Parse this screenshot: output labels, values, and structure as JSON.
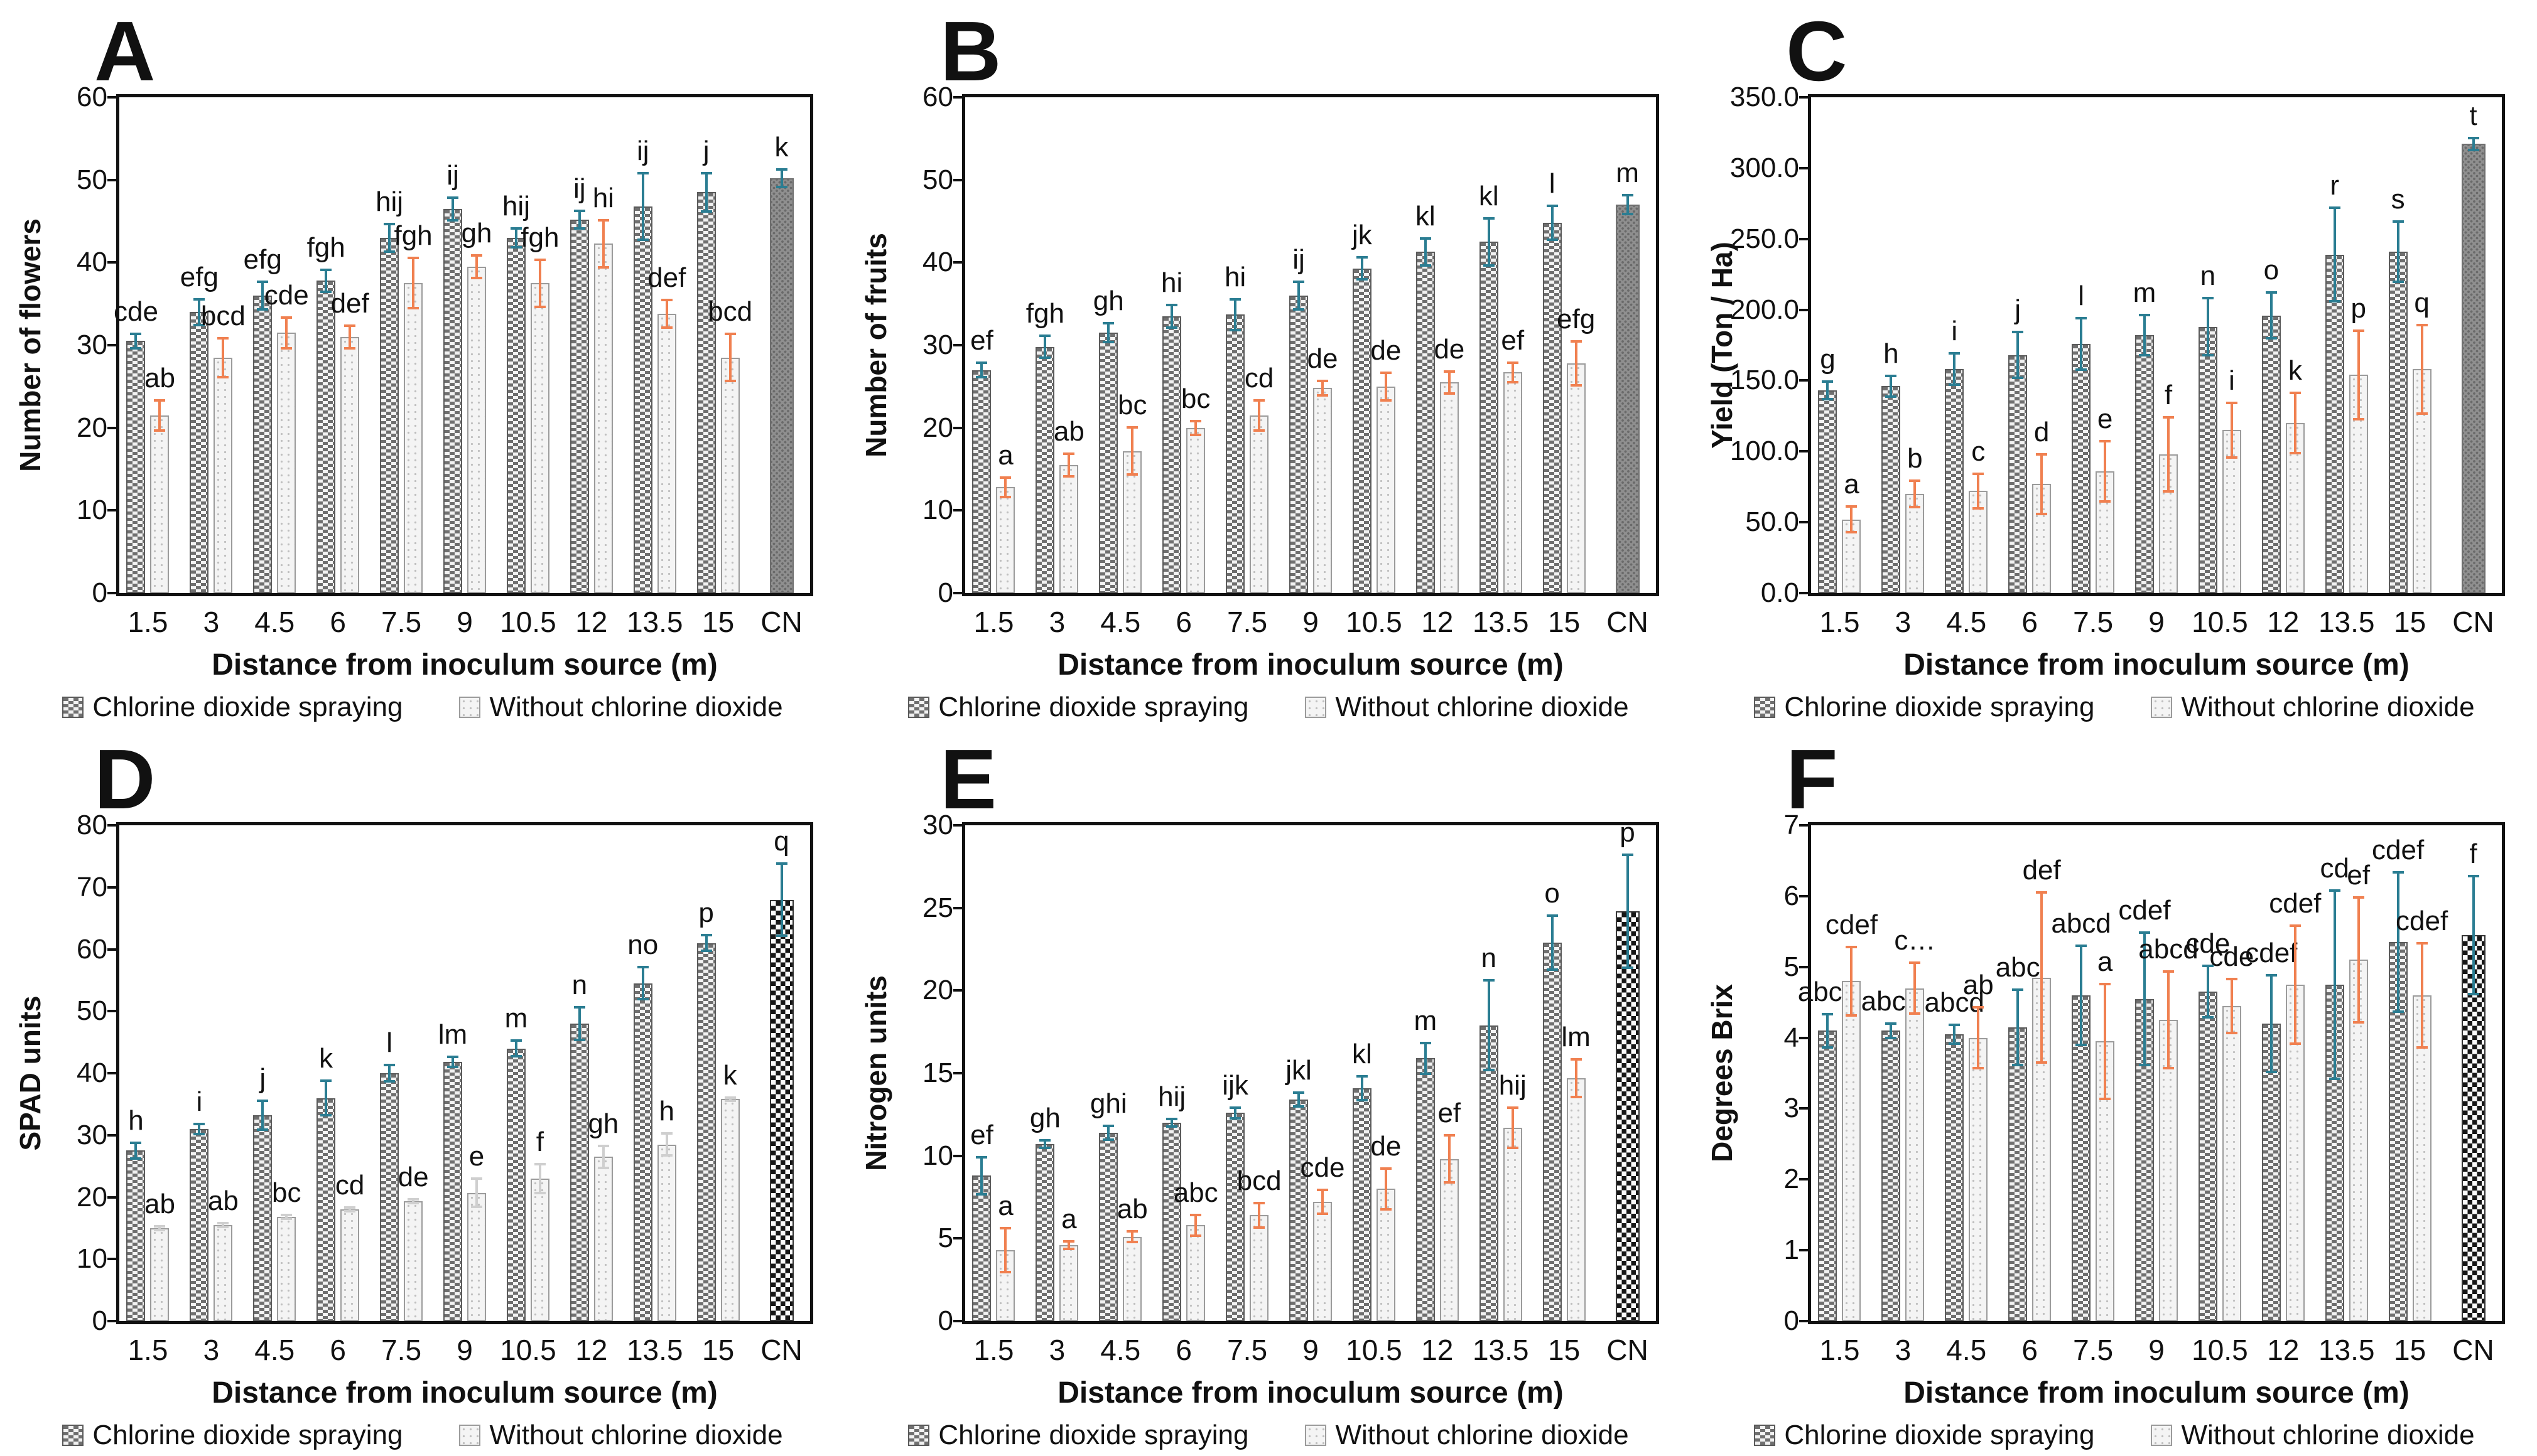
{
  "figure": {
    "xlabel": "Distance from inoculum source (m)",
    "categories": [
      "1.5",
      "3",
      "4.5",
      "6",
      "7.5",
      "9",
      "10.5",
      "12",
      "13.5",
      "15",
      "CN"
    ],
    "legend": {
      "series1_label": "Chlorine dioxide spraying",
      "series2_label": "Without chlorine dioxide"
    },
    "colors": {
      "series1_error": "#2a7d92",
      "series2_error": "#f08050",
      "axis": "#111111",
      "text": "#111111"
    }
  },
  "chart_data": [
    {
      "panel": "A",
      "type": "bar",
      "ylabel": "Number of flowers",
      "ylim": [
        0,
        60
      ],
      "ystep": 10,
      "tick_decimals": 0,
      "cn_style": "dot",
      "categories": [
        "1.5",
        "3",
        "4.5",
        "6",
        "7.5",
        "9",
        "10.5",
        "12",
        "13.5",
        "15"
      ],
      "series": [
        {
          "name": "Chlorine dioxide spraying",
          "values": [
            30.5,
            34,
            36,
            37.8,
            43,
            46.5,
            43,
            45.2,
            46.8,
            48.5
          ],
          "errors": [
            1,
            1.7,
            1.8,
            1.5,
            1.8,
            1.5,
            1.3,
            1.2,
            4.2,
            2.5
          ],
          "letters": [
            "cde",
            "efg",
            "efg",
            "fgh",
            "hij",
            "ij",
            "hij",
            "ij",
            "ij",
            "j"
          ]
        },
        {
          "name": "Without chlorine dioxide",
          "values": [
            21.5,
            28.5,
            31.5,
            31,
            37.5,
            39.5,
            37.5,
            42.3,
            33.8,
            28.5
          ],
          "errors": [
            2,
            2.5,
            2,
            1.5,
            3.2,
            1.5,
            3,
            3,
            1.8,
            3
          ],
          "letters": [
            "ab",
            "bcd",
            "cde",
            "def",
            "fgh",
            "gh",
            "fgh",
            "hi",
            "def",
            "bcd"
          ]
        }
      ],
      "cn": {
        "label": "CN",
        "value": 50.2,
        "error": 1.2,
        "letter": "k"
      }
    },
    {
      "panel": "B",
      "type": "bar",
      "ylabel": "Number of fruits",
      "ylim": [
        0,
        60
      ],
      "ystep": 10,
      "tick_decimals": 0,
      "cn_style": "dot",
      "categories": [
        "1.5",
        "3",
        "4.5",
        "6",
        "7.5",
        "9",
        "10.5",
        "12",
        "13.5",
        "15"
      ],
      "series": [
        {
          "name": "Chlorine dioxide spraying",
          "values": [
            27,
            29.8,
            31.5,
            33.5,
            33.7,
            36,
            39.3,
            41.3,
            42.5,
            44.8
          ],
          "errors": [
            1,
            1.5,
            1.3,
            1.5,
            2,
            1.8,
            1.5,
            1.8,
            3,
            2.2
          ],
          "letters": [
            "ef",
            "fgh",
            "gh",
            "hi",
            "hi",
            "ij",
            "jk",
            "kl",
            "kl",
            "l"
          ]
        },
        {
          "name": "Without chlorine dioxide",
          "values": [
            12.8,
            15.5,
            17.2,
            20,
            21.5,
            24.8,
            25,
            25.5,
            26.7,
            27.8
          ],
          "errors": [
            1.3,
            1.5,
            3,
            1,
            2,
            1,
            1.8,
            1.5,
            1.3,
            2.8
          ],
          "letters": [
            "a",
            "ab",
            "bc",
            "bc",
            "cd",
            "de",
            "de",
            "de",
            "ef",
            "efg"
          ]
        }
      ],
      "cn": {
        "label": "CN",
        "value": 47,
        "error": 1.3,
        "letter": "m"
      }
    },
    {
      "panel": "C",
      "type": "bar",
      "ylabel": "Yield (Ton / Ha)",
      "ylim": [
        0,
        350
      ],
      "ystep": 50,
      "tick_decimals": 1,
      "cn_style": "dot",
      "categories": [
        "1.5",
        "3",
        "4.5",
        "6",
        "7.5",
        "9",
        "10.5",
        "12",
        "13.5",
        "15"
      ],
      "series": [
        {
          "name": "Chlorine dioxide spraying",
          "values": [
            143,
            146,
            158,
            168,
            176,
            182,
            188,
            196,
            239,
            241
          ],
          "errors": [
            7,
            8,
            12,
            17,
            19,
            15,
            21,
            17,
            34,
            22
          ],
          "letters": [
            "g",
            "h",
            "i",
            "j",
            "l",
            "m",
            "n",
            "o",
            "r",
            "s"
          ]
        },
        {
          "name": "Without chlorine dioxide",
          "values": [
            52,
            70,
            72,
            77,
            86,
            98,
            115,
            120,
            154,
            158
          ],
          "errors": [
            10,
            10,
            13,
            22,
            22,
            27,
            20,
            22,
            32,
            32
          ],
          "letters": [
            "a",
            "b",
            "c",
            "d",
            "e",
            "f",
            "i",
            "k",
            "p",
            "q"
          ]
        }
      ],
      "cn": {
        "label": "CN",
        "value": 317,
        "error": 5,
        "letter": "t"
      }
    },
    {
      "panel": "D",
      "type": "bar",
      "ylabel": "SPAD units",
      "ylim": [
        0,
        80
      ],
      "ystep": 10,
      "tick_decimals": 0,
      "cn_style": "check",
      "categories": [
        "1.5",
        "3",
        "4.5",
        "6",
        "7.5",
        "9",
        "10.5",
        "12",
        "13.5",
        "15"
      ],
      "series": [
        {
          "name": "Chlorine dioxide spraying",
          "values": [
            27.5,
            31,
            33.2,
            36,
            40,
            41.8,
            44,
            48,
            54.5,
            61
          ],
          "errors": [
            1.5,
            1,
            2.5,
            3,
            1.5,
            1,
            1.5,
            2.8,
            2.8,
            1.5
          ],
          "letters": [
            "h",
            "i",
            "j",
            "k",
            "l",
            "lm",
            "m",
            "n",
            "no",
            "p"
          ]
        },
        {
          "name": "Without chlorine dioxide",
          "values": [
            15,
            15.5,
            16.8,
            18,
            19.3,
            20.7,
            23,
            26.5,
            28.5,
            35.8
          ],
          "errors": [
            0.5,
            0.5,
            0.5,
            0.5,
            0.5,
            2.5,
            2.5,
            2,
            2,
            0.5
          ],
          "letters": [
            "ab",
            "ab",
            "bc",
            "cd",
            "de",
            "e",
            "f",
            "gh",
            "h",
            "k"
          ],
          "error_color": "#cfcfcf"
        }
      ],
      "cn": {
        "label": "CN",
        "value": 68,
        "error": 6,
        "letter": "q"
      }
    },
    {
      "panel": "E",
      "type": "bar",
      "ylabel": "Nitrogen units",
      "ylim": [
        0,
        30
      ],
      "ystep": 5,
      "tick_decimals": 0,
      "cn_style": "check",
      "categories": [
        "1.5",
        "3",
        "4.5",
        "6",
        "7.5",
        "9",
        "10.5",
        "12",
        "13.5",
        "15"
      ],
      "series": [
        {
          "name": "Chlorine dioxide spraying",
          "values": [
            8.8,
            10.7,
            11.4,
            12,
            12.6,
            13.4,
            14.1,
            15.9,
            17.9,
            22.9
          ],
          "errors": [
            1.2,
            0.3,
            0.5,
            0.3,
            0.4,
            0.5,
            0.8,
            1,
            2.8,
            1.7
          ],
          "letters": [
            "ef",
            "gh",
            "ghi",
            "hij",
            "ijk",
            "jkl",
            "kl",
            "m",
            "n",
            "o"
          ]
        },
        {
          "name": "Without chlorine dioxide",
          "values": [
            4.3,
            4.6,
            5.1,
            5.8,
            6.4,
            7.2,
            8,
            9.8,
            11.7,
            14.7
          ],
          "errors": [
            1.4,
            0.3,
            0.4,
            0.7,
            0.8,
            0.8,
            1.3,
            1.5,
            1.3,
            1.2
          ],
          "letters": [
            "a",
            "a",
            "ab",
            "abc",
            "bcd",
            "cde",
            "de",
            "ef",
            "hij",
            "lm"
          ]
        }
      ],
      "cn": {
        "label": "CN",
        "value": 24.8,
        "error": 3.5,
        "letter": "p"
      }
    },
    {
      "panel": "F",
      "type": "bar",
      "ylabel": "Degrees Brix",
      "ylim": [
        0,
        7
      ],
      "ystep": 1,
      "tick_decimals": 0,
      "cn_style": "check",
      "categories": [
        "1.5",
        "3",
        "4.5",
        "6",
        "7.5",
        "9",
        "10.5",
        "12",
        "13.5",
        "15"
      ],
      "series": [
        {
          "name": "Chlorine dioxide spraying",
          "values": [
            4.1,
            4.1,
            4.05,
            4.15,
            4.6,
            4.55,
            4.65,
            4.2,
            4.75,
            5.35
          ],
          "errors": [
            0.25,
            0.12,
            0.15,
            0.55,
            0.72,
            0.95,
            0.38,
            0.7,
            1.35,
            1.0
          ],
          "letters": [
            "abcd",
            "abcd",
            "abcd",
            "abc",
            "abcd",
            "cdef",
            "cde",
            "cdef",
            "cd",
            "cdef"
          ]
        },
        {
          "name": "Without chlorine dioxide",
          "values": [
            4.8,
            4.7,
            4.0,
            4.85,
            3.95,
            4.25,
            4.45,
            4.75,
            5.1,
            4.6
          ],
          "errors": [
            0.5,
            0.38,
            0.45,
            1.22,
            0.83,
            0.7,
            0.4,
            0.85,
            0.9,
            0.75
          ],
          "letters": [
            "cdef",
            "c…",
            "ab",
            "def",
            "a",
            "abcd",
            "cde",
            "cdef",
            "ef",
            "cdef"
          ]
        }
      ],
      "cn": {
        "label": "CN",
        "value": 5.45,
        "error": 0.85,
        "letter": "f"
      }
    }
  ]
}
